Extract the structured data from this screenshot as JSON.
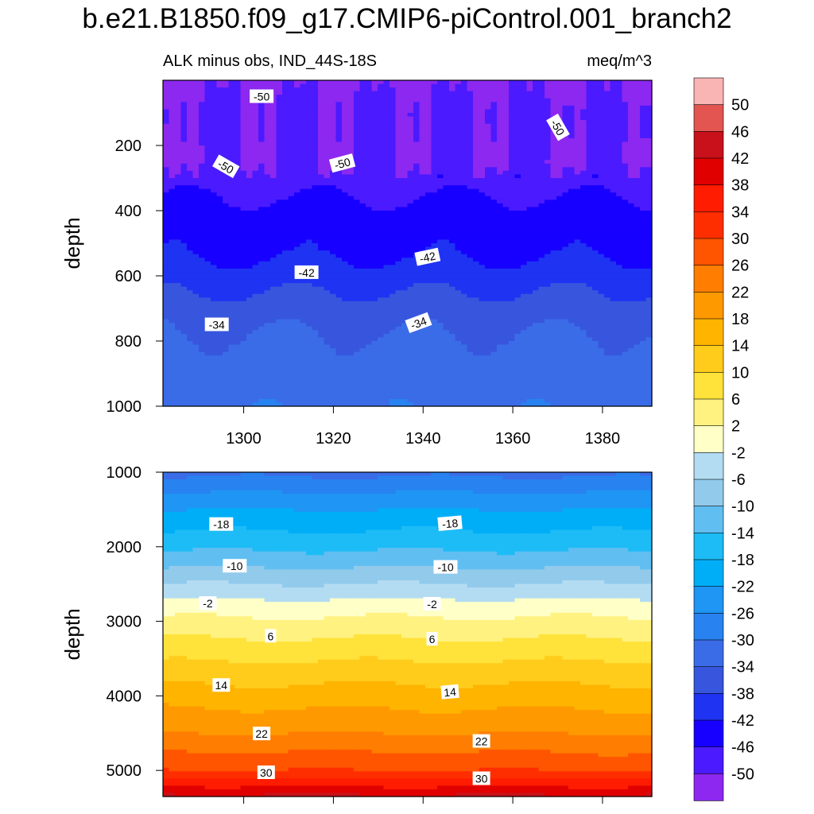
{
  "title": "b.e21.B1850.f09_g17.CMIP6-piControl.001_branch2",
  "chart_data": {
    "type": "heatmap",
    "subtitle_left": "ALK minus obs, IND_44S-18S",
    "subtitle_right": "meq/m^3",
    "xlabel": "",
    "ylabel": "depth",
    "x_range": [
      1282,
      1391
    ],
    "x_ticks": [
      1300,
      1320,
      1340,
      1360,
      1380
    ],
    "panels": [
      {
        "name": "upper",
        "ylim": [
          0,
          1000
        ],
        "y_ticks": [
          200,
          400,
          600,
          800,
          1000
        ],
        "contour_labels": [
          {
            "text": "-50",
            "x": 1304,
            "y": 50,
            "rot": 0
          },
          {
            "text": "-50",
            "x": 1370,
            "y": 145,
            "rot": 60
          },
          {
            "text": "-50",
            "x": 1296,
            "y": 265,
            "rot": 30
          },
          {
            "text": "-50",
            "x": 1322,
            "y": 255,
            "rot": -15
          },
          {
            "text": "-42",
            "x": 1341,
            "y": 543,
            "rot": -12
          },
          {
            "text": "-42",
            "x": 1314,
            "y": 590,
            "rot": 0
          },
          {
            "text": "-34",
            "x": 1294,
            "y": 750,
            "rot": 0
          },
          {
            "text": "-34",
            "x": 1339,
            "y": 745,
            "rot": -20
          }
        ]
      },
      {
        "name": "lower",
        "ylim": [
          1000,
          5350
        ],
        "y_ticks": [
          1000,
          2000,
          3000,
          4000,
          5000
        ],
        "contour_labels": [
          {
            "text": "-18",
            "x": 1295,
            "y": 1700,
            "rot": 0
          },
          {
            "text": "-18",
            "x": 1346,
            "y": 1690,
            "rot": -5
          },
          {
            "text": "-10",
            "x": 1298,
            "y": 2260,
            "rot": 0
          },
          {
            "text": "-10",
            "x": 1345,
            "y": 2275,
            "rot": 0
          },
          {
            "text": "-2",
            "x": 1292,
            "y": 2760,
            "rot": 0
          },
          {
            "text": "-2",
            "x": 1342,
            "y": 2770,
            "rot": 0
          },
          {
            "text": "6",
            "x": 1306,
            "y": 3200,
            "rot": 0
          },
          {
            "text": "6",
            "x": 1342,
            "y": 3240,
            "rot": 0
          },
          {
            "text": "14",
            "x": 1295,
            "y": 3860,
            "rot": 0
          },
          {
            "text": "14",
            "x": 1346,
            "y": 3950,
            "rot": -5
          },
          {
            "text": "22",
            "x": 1304,
            "y": 4510,
            "rot": 0
          },
          {
            "text": "22",
            "x": 1353,
            "y": 4610,
            "rot": 0
          },
          {
            "text": "30",
            "x": 1305,
            "y": 5030,
            "rot": 0
          },
          {
            "text": "30",
            "x": 1353,
            "y": 5110,
            "rot": 0
          }
        ]
      }
    ],
    "field_levels": [
      {
        "y": 0,
        "v": -51
      },
      {
        "y": 100,
        "v": -49
      },
      {
        "y": 250,
        "v": -50
      },
      {
        "y": 330,
        "v": -47
      },
      {
        "y": 420,
        "v": -44
      },
      {
        "y": 520,
        "v": -43
      },
      {
        "y": 600,
        "v": -40
      },
      {
        "y": 700,
        "v": -36
      },
      {
        "y": 820,
        "v": -33
      },
      {
        "y": 1000,
        "v": -31
      },
      {
        "y": 1500,
        "v": -22
      },
      {
        "y": 2000,
        "v": -15
      },
      {
        "y": 2500,
        "v": -6
      },
      {
        "y": 2800,
        "v": 0
      },
      {
        "y": 3300,
        "v": 7
      },
      {
        "y": 4000,
        "v": 16
      },
      {
        "y": 4500,
        "v": 22
      },
      {
        "y": 5000,
        "v": 30
      },
      {
        "y": 5350,
        "v": 43
      }
    ],
    "colorbar": {
      "levels": [
        50,
        46,
        42,
        38,
        34,
        30,
        26,
        22,
        18,
        14,
        10,
        6,
        2,
        -2,
        -6,
        -10,
        -14,
        -18,
        -22,
        -26,
        -30,
        -34,
        -38,
        -42,
        -46,
        -50
      ],
      "colors": [
        "#f9b4b4",
        "#e25550",
        "#c8111a",
        "#e00000",
        "#ff1c00",
        "#ff2e00",
        "#ff5500",
        "#ff7d00",
        "#ff9900",
        "#ffb400",
        "#ffcc1c",
        "#ffe23a",
        "#fff280",
        "#ffffc8",
        "#b3dcf2",
        "#92caec",
        "#61bef1",
        "#1dbcf6",
        "#00aef7",
        "#1f95f4",
        "#2882f0",
        "#3b6ce8",
        "#3756dd",
        "#1f33f2",
        "#1700ff",
        "#4b1aff",
        "#8c28ef"
      ],
      "units": "meq/m^3"
    }
  }
}
